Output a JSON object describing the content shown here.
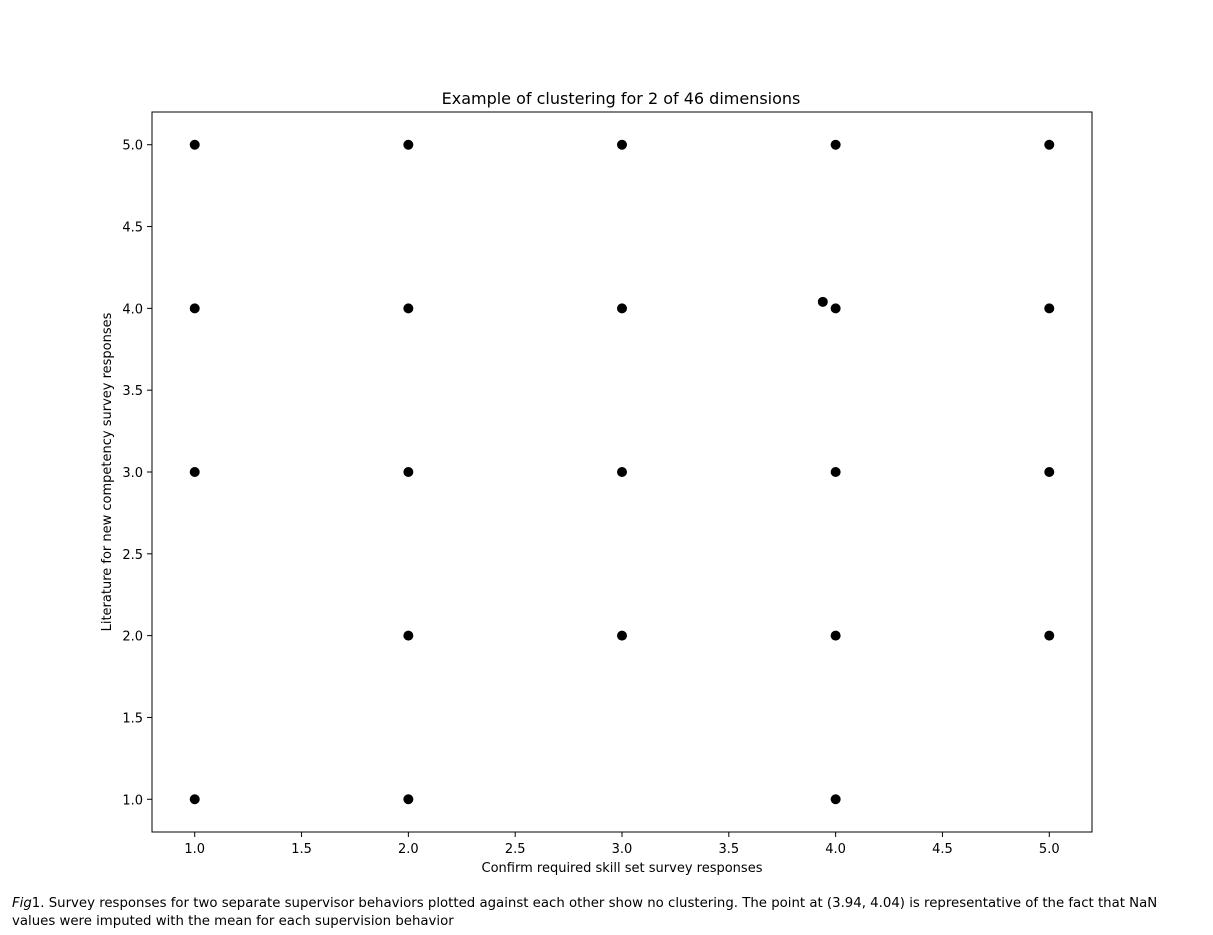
{
  "chart_data": {
    "type": "scatter",
    "title": "Example of clustering for 2 of 46 dimensions",
    "xlabel": "Confirm required skill set survey responses",
    "ylabel": "Literature for new competency survey responses",
    "xlim": [
      0.8,
      5.2
    ],
    "ylim": [
      0.8,
      5.2
    ],
    "xticks": [
      "1.0",
      "1.5",
      "2.0",
      "2.5",
      "3.0",
      "3.5",
      "4.0",
      "4.5",
      "5.0"
    ],
    "yticks": [
      "1.0",
      "1.5",
      "2.0",
      "2.5",
      "3.0",
      "3.5",
      "4.0",
      "4.5",
      "5.0"
    ],
    "grid": false,
    "marker_color": "#000000",
    "points": [
      {
        "x": 1,
        "y": 5
      },
      {
        "x": 1,
        "y": 4
      },
      {
        "x": 1,
        "y": 3
      },
      {
        "x": 1,
        "y": 1
      },
      {
        "x": 2,
        "y": 5
      },
      {
        "x": 2,
        "y": 4
      },
      {
        "x": 2,
        "y": 3
      },
      {
        "x": 2,
        "y": 2
      },
      {
        "x": 2,
        "y": 1
      },
      {
        "x": 3,
        "y": 5
      },
      {
        "x": 3,
        "y": 4
      },
      {
        "x": 3,
        "y": 3
      },
      {
        "x": 3,
        "y": 2
      },
      {
        "x": 4,
        "y": 5
      },
      {
        "x": 4,
        "y": 4
      },
      {
        "x": 3.94,
        "y": 4.04
      },
      {
        "x": 4,
        "y": 3
      },
      {
        "x": 4,
        "y": 2
      },
      {
        "x": 4,
        "y": 1
      },
      {
        "x": 5,
        "y": 5
      },
      {
        "x": 5,
        "y": 4
      },
      {
        "x": 5,
        "y": 3
      },
      {
        "x": 5,
        "y": 2
      }
    ]
  },
  "caption": {
    "fig_label": "Fig",
    "fig_number": "1.",
    "text": " Survey responses for two separate supervisor behaviors plotted against each other show no clustering. The point at (3.94, 4.04) is representative of the fact that NaN values were imputed with the mean for each supervision behavior"
  }
}
